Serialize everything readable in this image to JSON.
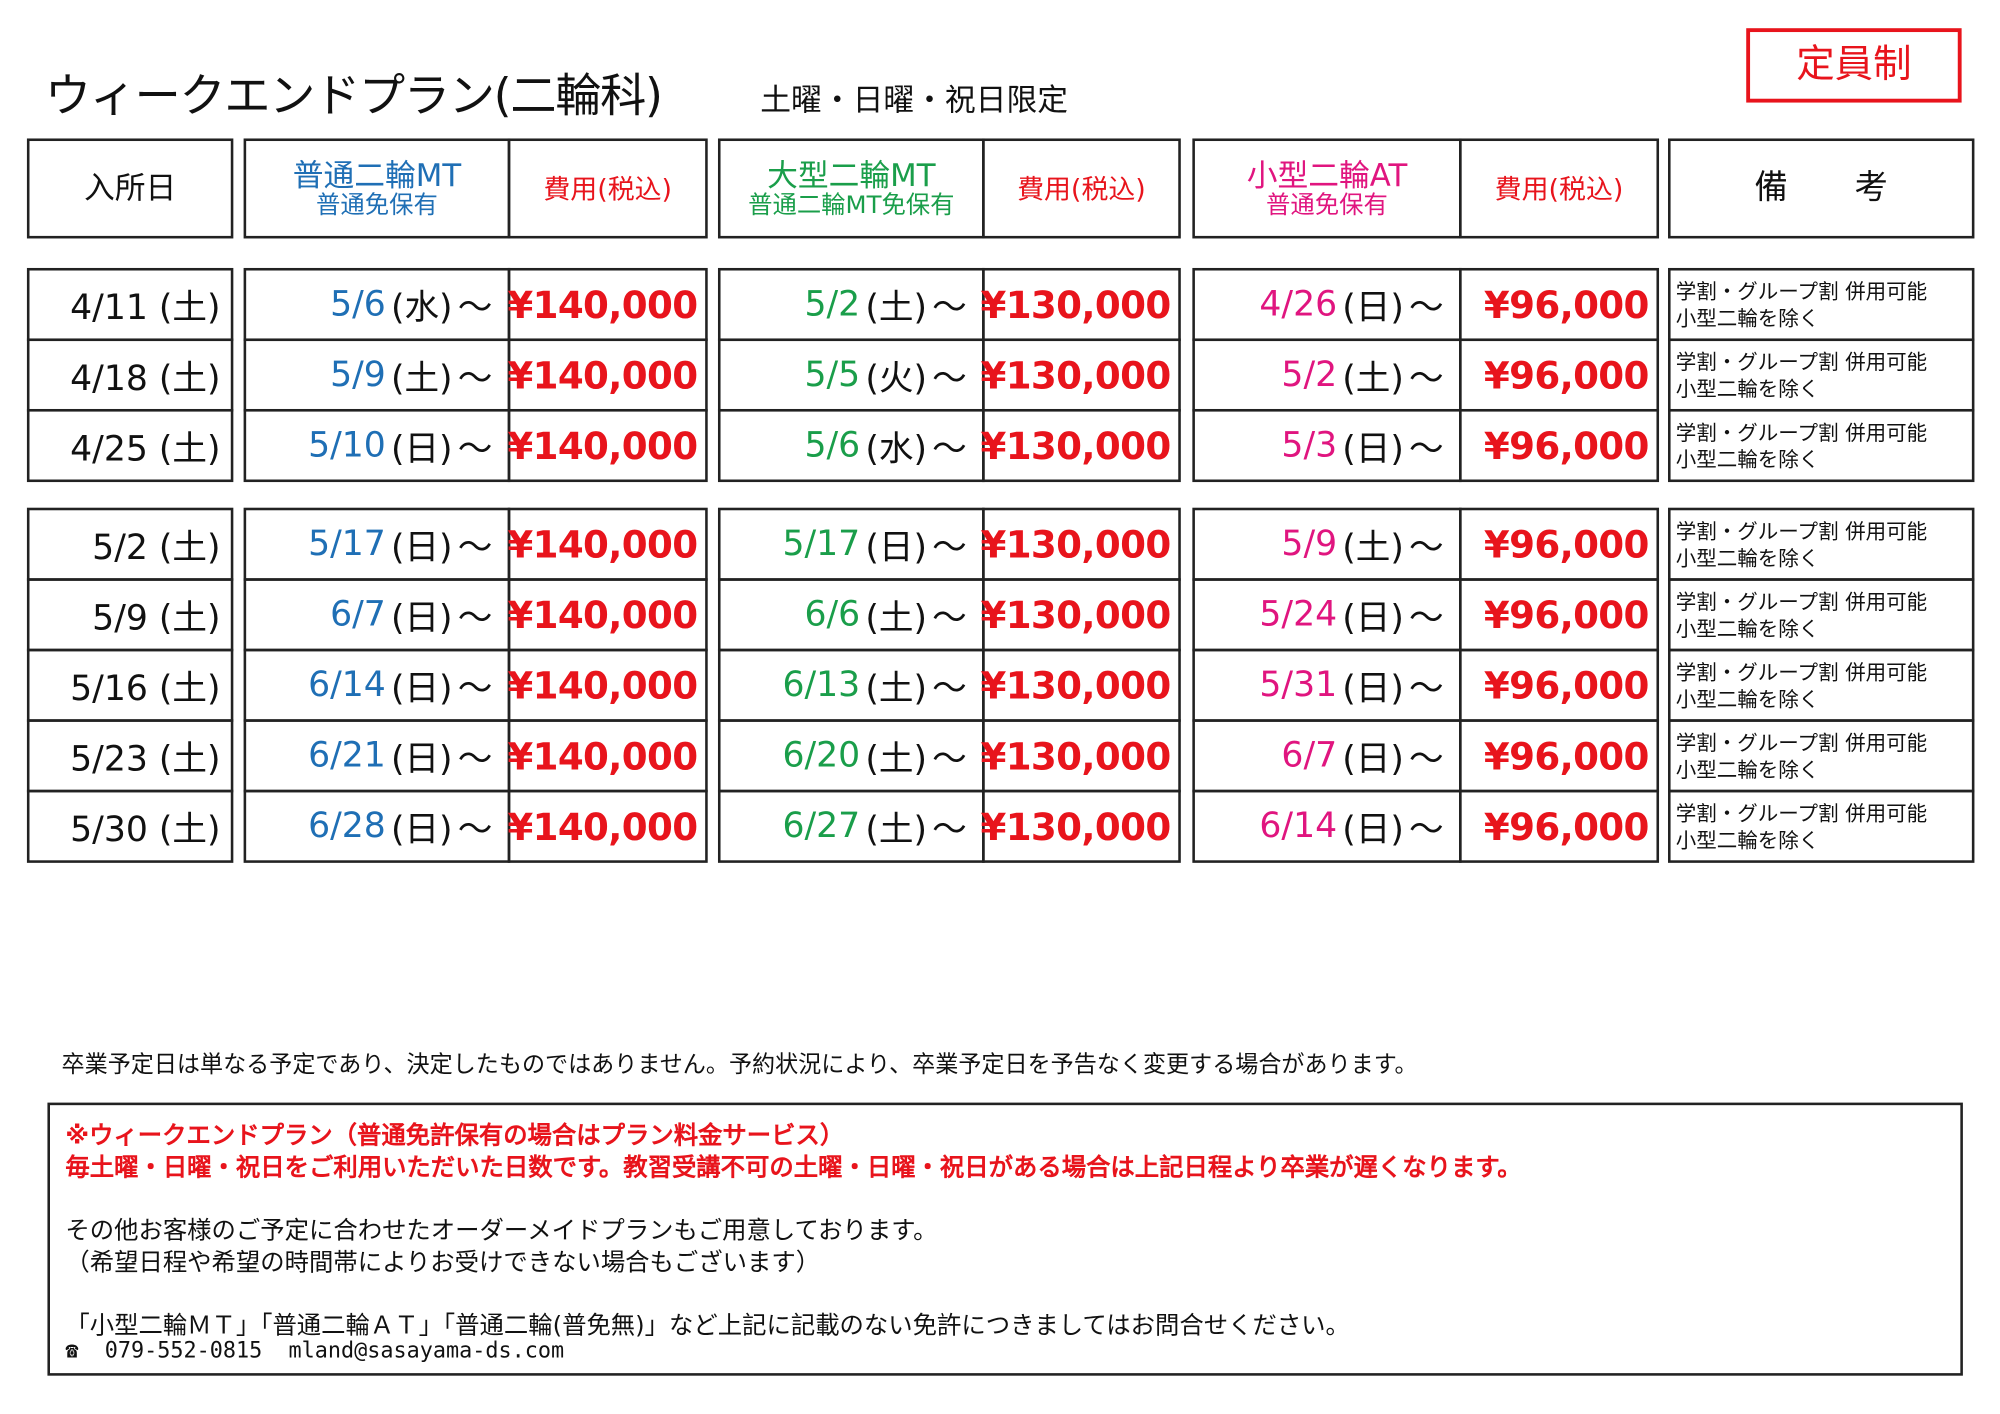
{
  "title": "ウィークエンドプラン(二輪科)",
  "subtitle": "土曜・日曜・祝日限定",
  "badge": "定員制",
  "header": {
    "entry": "入所日",
    "course1": {
      "name": "普通二輪MT",
      "req": "普通免保有",
      "fee": "費用(税込)"
    },
    "course2": {
      "name": "大型二輪MT",
      "req": "普通二輪MT免保有",
      "fee": "費用(税込)"
    },
    "course3": {
      "name": "小型二輪AT",
      "req": "普通免保有",
      "fee": "費用(税込)"
    },
    "remarks": "備　　考"
  },
  "colors": {
    "course1": "#1f6fb5",
    "course2": "#1a9e4a",
    "course3": "#e0157f",
    "price": "#e8141c"
  },
  "tilde": "～",
  "rows": [
    {
      "entry": "4/11 (土)",
      "c1": {
        "date": "5/6",
        "wd": "(水)",
        "price": "¥140,000"
      },
      "c2": {
        "date": "5/2",
        "wd": "(土)",
        "price": "¥130,000"
      },
      "c3": {
        "date": "4/26",
        "wd": "(日)",
        "price": "¥96,000"
      },
      "note1": "学割・グループ割 併用可能",
      "note2": "小型二輪を除く"
    },
    {
      "entry": "4/18 (土)",
      "c1": {
        "date": "5/9",
        "wd": "(土)",
        "price": "¥140,000"
      },
      "c2": {
        "date": "5/5",
        "wd": "(火)",
        "price": "¥130,000"
      },
      "c3": {
        "date": "5/2",
        "wd": "(土)",
        "price": "¥96,000"
      },
      "note1": "学割・グループ割 併用可能",
      "note2": "小型二輪を除く"
    },
    {
      "entry": "4/25 (土)",
      "c1": {
        "date": "5/10",
        "wd": "(日)",
        "price": "¥140,000"
      },
      "c2": {
        "date": "5/6",
        "wd": "(水)",
        "price": "¥130,000"
      },
      "c3": {
        "date": "5/3",
        "wd": "(日)",
        "price": "¥96,000"
      },
      "note1": "学割・グループ割 併用可能",
      "note2": "小型二輪を除く"
    },
    {
      "entry": "5/2 (土)",
      "c1": {
        "date": "5/17",
        "wd": "(日)",
        "price": "¥140,000"
      },
      "c2": {
        "date": "5/17",
        "wd": "(日)",
        "price": "¥130,000"
      },
      "c3": {
        "date": "5/9",
        "wd": "(土)",
        "price": "¥96,000"
      },
      "note1": "学割・グループ割 併用可能",
      "note2": "小型二輪を除く"
    },
    {
      "entry": "5/9 (土)",
      "c1": {
        "date": "6/7",
        "wd": "(日)",
        "price": "¥140,000"
      },
      "c2": {
        "date": "6/6",
        "wd": "(土)",
        "price": "¥130,000"
      },
      "c3": {
        "date": "5/24",
        "wd": "(日)",
        "price": "¥96,000"
      },
      "note1": "学割・グループ割 併用可能",
      "note2": "小型二輪を除く"
    },
    {
      "entry": "5/16 (土)",
      "c1": {
        "date": "6/14",
        "wd": "(日)",
        "price": "¥140,000"
      },
      "c2": {
        "date": "6/13",
        "wd": "(土)",
        "price": "¥130,000"
      },
      "c3": {
        "date": "5/31",
        "wd": "(日)",
        "price": "¥96,000"
      },
      "note1": "学割・グループ割 併用可能",
      "note2": "小型二輪を除く"
    },
    {
      "entry": "5/23 (土)",
      "c1": {
        "date": "6/21",
        "wd": "(日)",
        "price": "¥140,000"
      },
      "c2": {
        "date": "6/20",
        "wd": "(土)",
        "price": "¥130,000"
      },
      "c3": {
        "date": "6/7",
        "wd": "(日)",
        "price": "¥96,000"
      },
      "note1": "学割・グループ割 併用可能",
      "note2": "小型二輪を除く"
    },
    {
      "entry": "5/30 (土)",
      "c1": {
        "date": "6/28",
        "wd": "(日)",
        "price": "¥140,000"
      },
      "c2": {
        "date": "6/27",
        "wd": "(土)",
        "price": "¥130,000"
      },
      "c3": {
        "date": "6/14",
        "wd": "(日)",
        "price": "¥96,000"
      },
      "note1": "学割・グループ割 併用可能",
      "note2": "小型二輪を除く"
    }
  ],
  "disclaimer": "卒業予定日は単なる予定であり、決定したものではありません。予約状況により、卒業予定日を予告なく変更する場合があります。",
  "info": {
    "red1": "※ウィークエンドプラン（普通免許保有の場合はプラン料金サービス）",
    "red2": "毎土曜・日曜・祝日をご利用いただいた日数です。教習受講不可の土曜・日曜・祝日がある場合は上記日程より卒業が遅くなります。",
    "line3": "その他お客様のご予定に合わせたオーダーメイドプランもご用意しております。",
    "line4": "（希望日程や希望の時間帯によりお受けできない場合もございます）",
    "line5": "「小型二輪ＭＴ」「普通二輪ＡＴ」「普通二輪(普免無)」など上記に記載のない免許につきましてはお問合せください。",
    "phone_icon": "☎",
    "phone": "079-552-0815",
    "email": "mland@sasayama-ds.com"
  }
}
